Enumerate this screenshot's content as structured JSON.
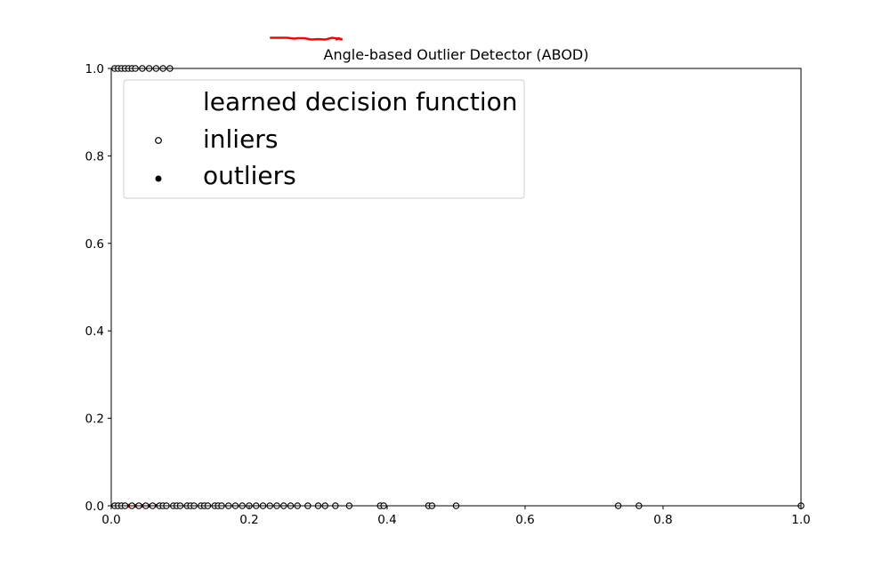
{
  "chart_data": {
    "type": "scatter",
    "title": "Angle-based Outlier Detector (ABOD)",
    "xlabel": "",
    "ylabel": "",
    "xlim": [
      0.0,
      1.0
    ],
    "ylim": [
      0.0,
      1.0
    ],
    "x_ticks": [
      "0.0",
      "0.2",
      "0.4",
      "0.6",
      "0.8",
      "1.0"
    ],
    "y_ticks": [
      "0.0",
      "0.2",
      "0.4",
      "0.6",
      "0.8",
      "1.0"
    ],
    "grid": false,
    "legend": {
      "placement": "upper-left",
      "entries": [
        {
          "label": "learned decision function",
          "marker": "none"
        },
        {
          "label": "inliers",
          "marker": "open-circle"
        },
        {
          "label": "outliers",
          "marker": "filled-circle"
        }
      ]
    },
    "series": [
      {
        "name": "inliers",
        "marker": "open-circle",
        "color": "#000000",
        "points": [
          [
            0.005,
            0.0
          ],
          [
            0.01,
            0.0
          ],
          [
            0.015,
            0.0
          ],
          [
            0.02,
            0.0
          ],
          [
            0.03,
            0.0
          ],
          [
            0.04,
            0.0
          ],
          [
            0.05,
            0.0
          ],
          [
            0.06,
            0.0
          ],
          [
            0.07,
            0.0
          ],
          [
            0.075,
            0.0
          ],
          [
            0.08,
            0.0
          ],
          [
            0.09,
            0.0
          ],
          [
            0.095,
            0.0
          ],
          [
            0.1,
            0.0
          ],
          [
            0.11,
            0.0
          ],
          [
            0.115,
            0.0
          ],
          [
            0.12,
            0.0
          ],
          [
            0.13,
            0.0
          ],
          [
            0.135,
            0.0
          ],
          [
            0.14,
            0.0
          ],
          [
            0.15,
            0.0
          ],
          [
            0.155,
            0.0
          ],
          [
            0.16,
            0.0
          ],
          [
            0.17,
            0.0
          ],
          [
            0.18,
            0.0
          ],
          [
            0.19,
            0.0
          ],
          [
            0.2,
            0.0
          ],
          [
            0.21,
            0.0
          ],
          [
            0.22,
            0.0
          ],
          [
            0.23,
            0.0
          ],
          [
            0.24,
            0.0
          ],
          [
            0.25,
            0.0
          ],
          [
            0.26,
            0.0
          ],
          [
            0.27,
            0.0
          ],
          [
            0.285,
            0.0
          ],
          [
            0.3,
            0.0
          ],
          [
            0.31,
            0.0
          ],
          [
            0.325,
            0.0
          ],
          [
            0.345,
            0.0
          ],
          [
            0.39,
            0.0
          ],
          [
            0.395,
            0.0
          ],
          [
            0.46,
            0.0
          ],
          [
            0.465,
            0.0
          ],
          [
            0.5,
            0.0
          ],
          [
            0.735,
            0.0
          ],
          [
            0.765,
            0.0
          ],
          [
            1.0,
            0.0
          ],
          [
            0.005,
            1.0
          ],
          [
            0.01,
            1.0
          ],
          [
            0.015,
            1.0
          ],
          [
            0.02,
            1.0
          ],
          [
            0.025,
            1.0
          ],
          [
            0.03,
            1.0
          ],
          [
            0.035,
            1.0
          ],
          [
            0.045,
            1.0
          ],
          [
            0.055,
            1.0
          ],
          [
            0.065,
            1.0
          ],
          [
            0.075,
            1.0
          ],
          [
            0.085,
            1.0
          ]
        ]
      },
      {
        "name": "learned decision function",
        "marker": "line",
        "color": "#ff0000",
        "segments": [
          [
            [
              0.0,
              0.002
            ],
            [
              0.07,
              0.002
            ]
          ],
          [
            [
              0.005,
              -0.002
            ],
            [
              0.065,
              -0.002
            ]
          ]
        ],
        "detached_segments": [
          [
            [
              0.23,
              1.07
            ],
            [
              0.255,
              1.07
            ],
            [
              0.265,
              1.068
            ],
            [
              0.27,
              1.069
            ],
            [
              0.28,
              1.069
            ],
            [
              0.29,
              1.066
            ],
            [
              0.3,
              1.067
            ],
            [
              0.31,
              1.066
            ],
            [
              0.32,
              1.07
            ],
            [
              0.33,
              1.068
            ],
            [
              0.335,
              1.066
            ]
          ],
          [
            [
              0.325,
              1.066
            ],
            [
              0.33,
              1.069
            ],
            [
              0.335,
              1.066
            ]
          ]
        ]
      }
    ]
  }
}
